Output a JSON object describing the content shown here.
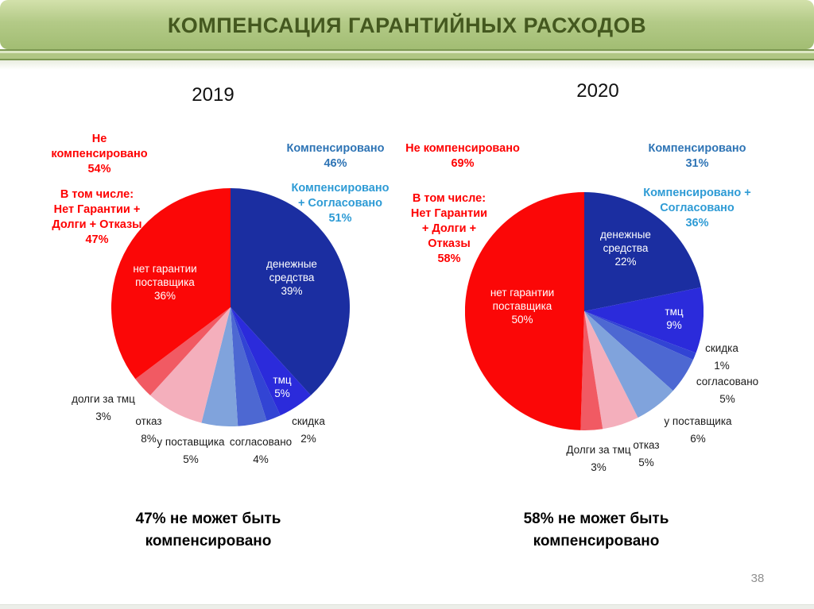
{
  "slide": {
    "title": "КОМПЕНСАЦИЯ ГАРАНТИЙНЫХ РАСХОДОВ",
    "page_number": "38",
    "accent_colors": {
      "header_text_green": "#44581f",
      "header_band_green": "#a2bd73",
      "red_annotation": "#fe0000",
      "blue_annotation_dark": "#2e74b5",
      "blue_annotation_light": "#2e9bd5"
    }
  },
  "chart_data": [
    {
      "type": "pie",
      "title": "2019",
      "labels": [
        "денежные средства",
        "тмц",
        "скидка",
        "согласовано",
        "у поставщика",
        "отказ",
        "долги за тмц",
        "нет гарантии поставщика"
      ],
      "values": [
        39,
        5,
        2,
        4,
        5,
        8,
        3,
        36
      ],
      "colors": [
        "#1b2ea1",
        "#2b2bdb",
        "#3244d4",
        "#4d68d2",
        "#80a3dc",
        "#f4afbc",
        "#f15a63",
        "#fb0707"
      ],
      "legend_position": "none",
      "inside_labels": {
        "money": "денежные\nсредства\n39%",
        "tmc": "тмц\n5%",
        "no_warranty": "нет гарантии\nпоставщика\n36%"
      },
      "outside_labels": {
        "debts_tmc": "долги за тмц\n3%",
        "refusal": "отказ\n8%",
        "at_supplier": "у поставщика\n5%",
        "agreed": "согласовано\n4%",
        "discount": "скидка\n2%"
      },
      "annotation_red_1": "Не\nкомпенсировано\n54%",
      "annotation_red_2": "В том числе:\nНет Гарантии +\nДолги + Отказы\n47%",
      "annotation_blue_1": "Компенсировано\n46%",
      "annotation_blue_2": "Компенсировано\n+ Согласовано\n51%",
      "caption": "47% не может быть\nкомпенсировано"
    },
    {
      "type": "pie",
      "title": "2020",
      "labels": [
        "денежные средства",
        "тмц",
        "скидка",
        "согласовано",
        "у поставщика",
        "отказ",
        "Долги за тмц",
        "нет гарантии поставщика"
      ],
      "values": [
        22,
        9,
        1,
        5,
        6,
        5,
        3,
        50
      ],
      "colors": [
        "#1b2ea1",
        "#2b2bdb",
        "#3244d4",
        "#4d68d2",
        "#80a3dc",
        "#f4afbc",
        "#f15a63",
        "#fb0707"
      ],
      "legend_position": "none",
      "inside_labels": {
        "money": "денежные\nсредства\n22%",
        "tmc": "тмц\n9%",
        "no_warranty": "нет гарантии\nпоставщика\n50%"
      },
      "outside_labels": {
        "discount": "скидка\n1%",
        "agreed": "согласовано\n5%",
        "at_supplier": "у поставщика\n6%",
        "refusal": "отказ\n5%",
        "debts_tmc": "Долги за тмц\n3%"
      },
      "annotation_red_1": "Не компенсировано\n69%",
      "annotation_red_2": "В том числе:\nНет Гарантии\n+ Долги +\nОтказы\n58%",
      "annotation_blue_1": "Компенсировано\n31%",
      "annotation_blue_2": "Компенсировано +\nСогласовано\n36%",
      "caption": "58% не может быть\nкомпенсировано"
    }
  ]
}
